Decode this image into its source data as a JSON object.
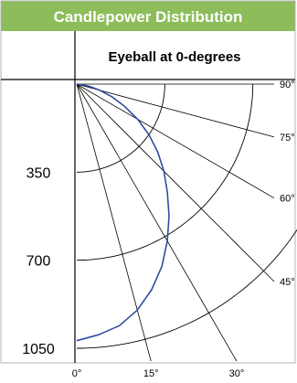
{
  "chart_data": {
    "type": "polar",
    "title": "Candlepower Distribution",
    "subtitle": "Eyeball at 0-degrees",
    "radial_axis": {
      "ticks": [
        350,
        700,
        1050
      ],
      "max": 1050
    },
    "angle_ticks_bottom": [
      "0°",
      "15°",
      "30°"
    ],
    "angle_ticks_right": [
      "45°",
      "60°",
      "75°",
      "90°"
    ],
    "curve_angles_deg": [
      0,
      5,
      10,
      15,
      20,
      25,
      30,
      35,
      40,
      45,
      50,
      55,
      60,
      65,
      70,
      75,
      80,
      85,
      90
    ],
    "curve_candela": [
      1020,
      1000,
      975,
      930,
      870,
      800,
      720,
      640,
      560,
      490,
      420,
      350,
      280,
      210,
      150,
      95,
      50,
      20,
      0
    ]
  },
  "colors": {
    "header_bg": "#8cbd5a",
    "header_text": "#ffffff",
    "curve": "#2e4d9f",
    "lines": "#000000",
    "border": "#b3b3b3"
  }
}
